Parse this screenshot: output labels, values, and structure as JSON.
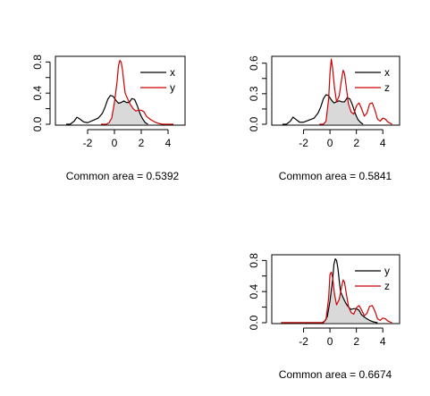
{
  "chart_data": [
    {
      "type": "line",
      "title": "",
      "xlabel": "",
      "ylabel": "",
      "xlim": [
        -4.0,
        5.0
      ],
      "ylim": [
        0,
        0.85
      ],
      "x_ticks": [
        "-2",
        "0",
        "2",
        "4"
      ],
      "y_ticks": [
        "0.0",
        "0.4",
        "0.8"
      ],
      "legend_position": "top-right",
      "shaded_overlap": true,
      "caption": "Common area = 0.5392",
      "series": [
        {
          "name": "x",
          "color": "#000000",
          "x": [
            -3.6,
            -3.3,
            -3.0,
            -2.8,
            -2.6,
            -2.3,
            -2.0,
            -1.6,
            -1.2,
            -0.9,
            -0.7,
            -0.5,
            -0.3,
            -0.1,
            0.1,
            0.3,
            0.5,
            0.7,
            0.9,
            1.1,
            1.3,
            1.5,
            1.7,
            1.9,
            2.1,
            2.3,
            2.5
          ],
          "y": [
            0.0,
            0.0,
            0.04,
            0.09,
            0.07,
            0.03,
            0.02,
            0.05,
            0.08,
            0.14,
            0.22,
            0.32,
            0.37,
            0.36,
            0.31,
            0.27,
            0.28,
            0.3,
            0.28,
            0.28,
            0.33,
            0.32,
            0.24,
            0.14,
            0.07,
            0.02,
            0.0
          ]
        },
        {
          "name": "y",
          "color": "#cc0000",
          "x": [
            -1.0,
            -0.6,
            -0.4,
            -0.2,
            0.0,
            0.2,
            0.3,
            0.4,
            0.5,
            0.6,
            0.7,
            0.8,
            1.0,
            1.2,
            1.4,
            1.6,
            1.8,
            2.0,
            2.2,
            2.4,
            2.7,
            3.0,
            3.3,
            3.6,
            4.0,
            4.4
          ],
          "y": [
            0.0,
            0.0,
            0.02,
            0.08,
            0.28,
            0.55,
            0.75,
            0.82,
            0.8,
            0.7,
            0.54,
            0.4,
            0.32,
            0.25,
            0.2,
            0.17,
            0.18,
            0.18,
            0.16,
            0.1,
            0.06,
            0.03,
            0.01,
            0.0,
            0.0,
            0.0
          ]
        }
      ]
    },
    {
      "type": "line",
      "title": "",
      "xlabel": "",
      "ylabel": "",
      "xlim": [
        -4.0,
        5.0
      ],
      "ylim": [
        0,
        0.65
      ],
      "x_ticks": [
        "-2",
        "0",
        "2",
        "4"
      ],
      "y_ticks": [
        "0.0",
        "0.3",
        "0.6"
      ],
      "legend_position": "top-right",
      "shaded_overlap": true,
      "caption": "Common area = 0.5841",
      "series": [
        {
          "name": "x",
          "color": "#000000",
          "x": [
            -3.6,
            -3.3,
            -3.0,
            -2.8,
            -2.6,
            -2.3,
            -2.0,
            -1.6,
            -1.2,
            -0.9,
            -0.7,
            -0.5,
            -0.3,
            -0.1,
            0.1,
            0.3,
            0.5,
            0.7,
            0.9,
            1.1,
            1.3,
            1.5,
            1.7,
            1.9,
            2.1,
            2.3,
            2.5
          ],
          "y": [
            0.0,
            0.0,
            0.03,
            0.07,
            0.05,
            0.02,
            0.02,
            0.04,
            0.06,
            0.11,
            0.17,
            0.25,
            0.29,
            0.28,
            0.24,
            0.21,
            0.22,
            0.23,
            0.22,
            0.22,
            0.26,
            0.25,
            0.19,
            0.11,
            0.05,
            0.02,
            0.0
          ]
        },
        {
          "name": "z",
          "color": "#cc0000",
          "x": [
            -0.8,
            -0.5,
            -0.3,
            -0.1,
            0.0,
            0.1,
            0.2,
            0.35,
            0.5,
            0.7,
            0.9,
            1.0,
            1.1,
            1.25,
            1.4,
            1.6,
            1.8,
            2.0,
            2.2,
            2.4,
            2.6,
            2.8,
            3.0,
            3.2,
            3.4,
            3.6,
            3.8,
            4.0,
            4.2,
            4.4,
            4.7
          ],
          "y": [
            0.0,
            0.0,
            0.03,
            0.25,
            0.5,
            0.64,
            0.55,
            0.35,
            0.22,
            0.28,
            0.46,
            0.53,
            0.5,
            0.35,
            0.2,
            0.12,
            0.1,
            0.18,
            0.21,
            0.15,
            0.08,
            0.11,
            0.2,
            0.21,
            0.14,
            0.05,
            0.03,
            0.06,
            0.05,
            0.02,
            0.0
          ]
        }
      ]
    },
    {
      "type": "line",
      "title": "",
      "xlabel": "",
      "ylabel": "",
      "xlim": [
        -4.0,
        5.0
      ],
      "ylim": [
        0,
        0.85
      ],
      "x_ticks": [
        "-2",
        "0",
        "2",
        "4"
      ],
      "y_ticks": [
        "0.0",
        "0.4",
        "0.8"
      ],
      "legend_position": "top-right",
      "shaded_overlap": true,
      "caption": "Common area = 0.6674",
      "series": [
        {
          "name": "y",
          "color": "#000000",
          "x": [
            -3.7,
            -1.0,
            -0.6,
            -0.4,
            -0.2,
            0.0,
            0.2,
            0.3,
            0.4,
            0.5,
            0.6,
            0.7,
            0.8,
            1.0,
            1.2,
            1.4,
            1.6,
            1.8,
            2.0,
            2.2,
            2.4,
            2.7,
            3.0,
            3.3,
            3.6
          ],
          "y": [
            0.0,
            0.0,
            0.0,
            0.02,
            0.08,
            0.28,
            0.55,
            0.75,
            0.82,
            0.8,
            0.7,
            0.54,
            0.4,
            0.32,
            0.25,
            0.2,
            0.17,
            0.18,
            0.18,
            0.16,
            0.1,
            0.06,
            0.03,
            0.01,
            0.0
          ]
        },
        {
          "name": "z",
          "color": "#cc0000",
          "x": [
            -3.7,
            -0.8,
            -0.5,
            -0.3,
            -0.1,
            0.0,
            0.1,
            0.2,
            0.35,
            0.5,
            0.7,
            0.9,
            1.0,
            1.1,
            1.25,
            1.4,
            1.6,
            1.8,
            2.0,
            2.2,
            2.4,
            2.6,
            2.8,
            3.0,
            3.2,
            3.4,
            3.6,
            3.8,
            4.0,
            4.2,
            4.4,
            4.7
          ],
          "y": [
            0.0,
            0.0,
            0.0,
            0.04,
            0.32,
            0.62,
            0.65,
            0.58,
            0.36,
            0.23,
            0.3,
            0.48,
            0.55,
            0.52,
            0.36,
            0.21,
            0.13,
            0.11,
            0.19,
            0.22,
            0.16,
            0.09,
            0.12,
            0.21,
            0.22,
            0.15,
            0.05,
            0.03,
            0.06,
            0.05,
            0.02,
            0.0
          ]
        }
      ]
    }
  ]
}
